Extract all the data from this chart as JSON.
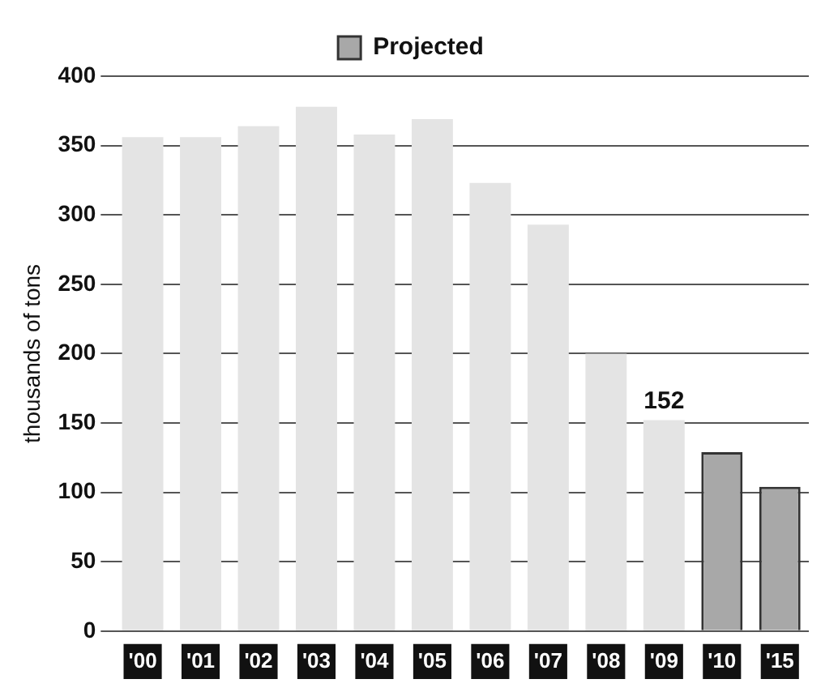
{
  "chart_data": {
    "type": "bar",
    "ylabel": "thousands of tons",
    "categories": [
      "'00",
      "'01",
      "'02",
      "'03",
      "'04",
      "'05",
      "'06",
      "'07",
      "'08",
      "'09",
      "'10",
      "'15"
    ],
    "series": [
      {
        "color": "#e4e4e4",
        "values": [
          356,
          356,
          364,
          378,
          358,
          369,
          323,
          293,
          200,
          152,
          null,
          null
        ],
        "value_labels": [
          null,
          null,
          null,
          null,
          null,
          null,
          null,
          null,
          null,
          "152",
          null,
          null
        ]
      },
      {
        "name": "Projected",
        "color": "#a8a8a8",
        "values": [
          null,
          null,
          null,
          null,
          null,
          null,
          null,
          null,
          null,
          null,
          129,
          104
        ]
      }
    ],
    "ylim": [
      0,
      400
    ],
    "yticks": [
      0,
      50,
      100,
      150,
      200,
      250,
      300,
      350,
      400
    ],
    "grid": "y",
    "legend": "top"
  }
}
